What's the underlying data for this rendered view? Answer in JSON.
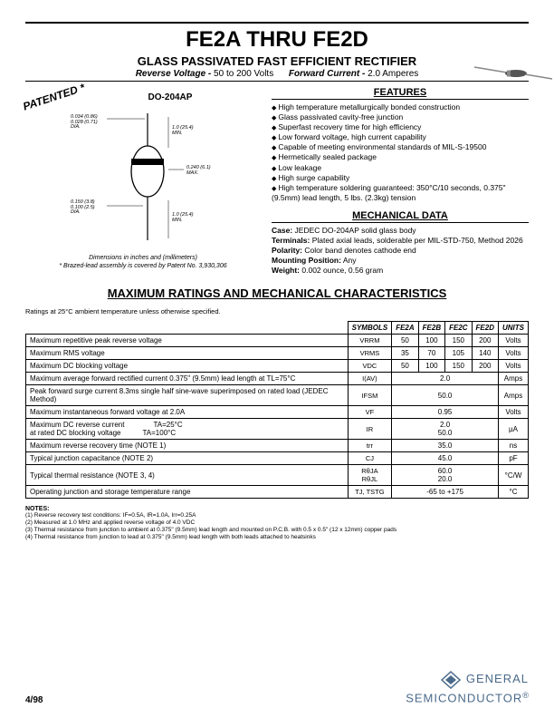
{
  "header": {
    "title": "FE2A THRU FE2D",
    "subtitle": "GLASS PASSIVATED FAST EFFICIENT RECTIFIER",
    "spec_rv_label": "Reverse Voltage -",
    "spec_rv_value": "50 to 200 Volts",
    "spec_fc_label": "Forward Current -",
    "spec_fc_value": "2.0 Amperes"
  },
  "left": {
    "patented": "PATENTED *",
    "package": "DO-204AP",
    "caption": "Dimensions in inches and (millimeters)",
    "patent_note": "* Brazed-lead assembly is covered by Patent No. 3,930,306",
    "dims": {
      "d1": "0.034 (0.86)\n0.028 (0.71)\nDIA.",
      "d2": "1.0 (25.4)\nMIN.",
      "d3": "0.240 (6.1)\nMAX.",
      "d4": "0.150 (3.8)\n0.100 (2.5)\nDIA.",
      "d5": "1.0 (25.4)\nMIN."
    }
  },
  "features": {
    "head": "FEATURES",
    "items": [
      "High temperature metallurgically bonded construction",
      "Glass passivated cavity-free junction",
      "Superfast recovery time for high efficiency",
      "Low forward voltage, high current capability",
      "Capable of meeting environmental standards of MIL-S-19500",
      "Hermetically sealed package",
      "Low leakage",
      "High surge capability",
      "High temperature soldering guaranteed: 350°C/10 seconds, 0.375\" (9.5mm) lead length, 5 lbs. (2.3kg) tension"
    ]
  },
  "mech": {
    "head": "MECHANICAL DATA",
    "case": "JEDEC DO-204AP solid glass body",
    "terminals": "Plated axial leads, solderable per MIL-STD-750, Method 2026",
    "polarity": "Color band denotes cathode end",
    "mounting": "Any",
    "weight": "0.002 ounce, 0.56 gram"
  },
  "ratings": {
    "head": "MAXIMUM RATINGS AND MECHANICAL CHARACTERISTICS",
    "note": "Ratings at 25°C ambient temperature unless otherwise specified.",
    "columns": [
      "SYMBOLS",
      "FE2A",
      "FE2B",
      "FE2C",
      "FE2D",
      "UNITS"
    ],
    "rows": [
      {
        "param": "Maximum repetitive peak reverse voltage",
        "sym": "VRRM",
        "vals": [
          "50",
          "100",
          "150",
          "200"
        ],
        "unit": "Volts"
      },
      {
        "param": "Maximum RMS voltage",
        "sym": "VRMS",
        "vals": [
          "35",
          "70",
          "105",
          "140"
        ],
        "unit": "Volts"
      },
      {
        "param": "Maximum DC blocking voltage",
        "sym": "VDC",
        "vals": [
          "50",
          "100",
          "150",
          "200"
        ],
        "unit": "Volts"
      },
      {
        "param": "Maximum average forward rectified current 0.375\" (9.5mm) lead length at TL=75°C",
        "sym": "I(AV)",
        "span": "2.0",
        "unit": "Amps"
      },
      {
        "param": "Peak forward surge current 8.3ms single half sine-wave superimposed on rated load (JEDEC Method)",
        "sym": "IFSM",
        "span": "50.0",
        "unit": "Amps"
      },
      {
        "param": "Maximum instantaneous forward voltage at 2.0A",
        "sym": "VF",
        "span": "0.95",
        "unit": "Volts"
      },
      {
        "param": "Maximum DC reverse current    TA=25°C\nat rated DC blocking voltage   TA=100°C",
        "sym": "IR",
        "span": "2.0\n50.0",
        "unit": "µA"
      },
      {
        "param": "Maximum reverse recovery time (NOTE 1)",
        "sym": "trr",
        "span": "35.0",
        "unit": "ns"
      },
      {
        "param": "Typical junction capacitance (NOTE 2)",
        "sym": "CJ",
        "span": "45.0",
        "unit": "pF"
      },
      {
        "param": "Typical thermal resistance (NOTE 3, 4)",
        "sym": "RθJA\nRθJL",
        "span": "60.0\n20.0",
        "unit": "°C/W"
      },
      {
        "param": "Operating junction and storage temperature range",
        "sym": "TJ, TSTG",
        "span": "-65 to +175",
        "unit": "°C"
      }
    ]
  },
  "notes": {
    "head": "NOTES:",
    "items": [
      "(1) Reverse recovery test conditions: IF=0.5A, IR=1.0A, Irr=0.25A",
      "(2) Measured at 1.0 MHz and applied reverse voltage of 4.0 VDC",
      "(3) Thermal resistance from junction to ambient at 0.375\" (9.5mm) lead length and mounted on P.C.B. with 0.5 x 0.5\" (12 x 12mm) copper pads",
      "(4) Thermal resistance from junction to lead at 0.375\" (9.5mm) lead length with both leads attached to heatsinks"
    ]
  },
  "footer": {
    "date": "4/98",
    "brand1": "GENERAL",
    "brand2": "SEMICONDUCTOR"
  }
}
